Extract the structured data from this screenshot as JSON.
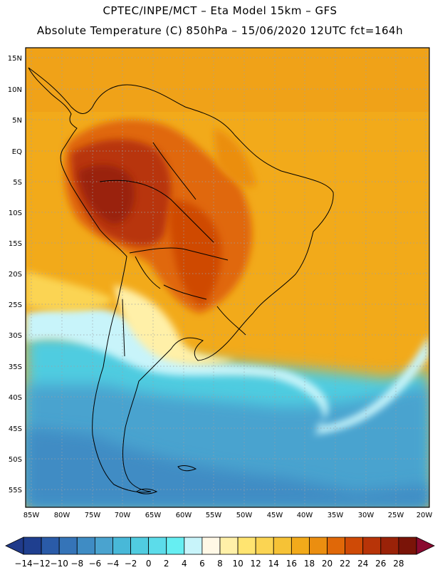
{
  "header": {
    "line1": "CPTEC/INPE/MCT –  Eta Model 15km – GFS",
    "line2": "Absolute Temperature (C) 850hPa – 15/06/2020 12UTC fct=164h"
  },
  "map": {
    "lat_labels": [
      "15N",
      "10N",
      "5N",
      "EQ",
      "5S",
      "10S",
      "15S",
      "20S",
      "25S",
      "30S",
      "35S",
      "40S",
      "45S",
      "50S",
      "55S"
    ],
    "lon_labels": [
      "85W",
      "80W",
      "75W",
      "70W",
      "65W",
      "60W",
      "55W",
      "50W",
      "45W",
      "40W",
      "35W",
      "30W",
      "25W",
      "20W"
    ]
  },
  "colorbar": {
    "labels": [
      "-14",
      "-12",
      "-10",
      "-8",
      "-6",
      "-4",
      "-2",
      "0",
      "2",
      "4",
      "6",
      "8",
      "10",
      "12",
      "14",
      "16",
      "18",
      "20",
      "22",
      "24",
      "26",
      "28"
    ],
    "colors": [
      "#1f3f8f",
      "#2a5ba8",
      "#3574b8",
      "#3f8cc4",
      "#4aa3cf",
      "#48b8d8",
      "#50cce0",
      "#5cdcea",
      "#66eef2",
      "#c8f4fa",
      "#fff8e6",
      "#fff0a8",
      "#ffe470",
      "#fbd452",
      "#f6c236",
      "#f2aa1a",
      "#eb8e10",
      "#e06808",
      "#cf4a06",
      "#b83408",
      "#9a2208",
      "#7a1408"
    ],
    "under_color": "#203a8a",
    "over_color": "#8a0a30"
  }
}
